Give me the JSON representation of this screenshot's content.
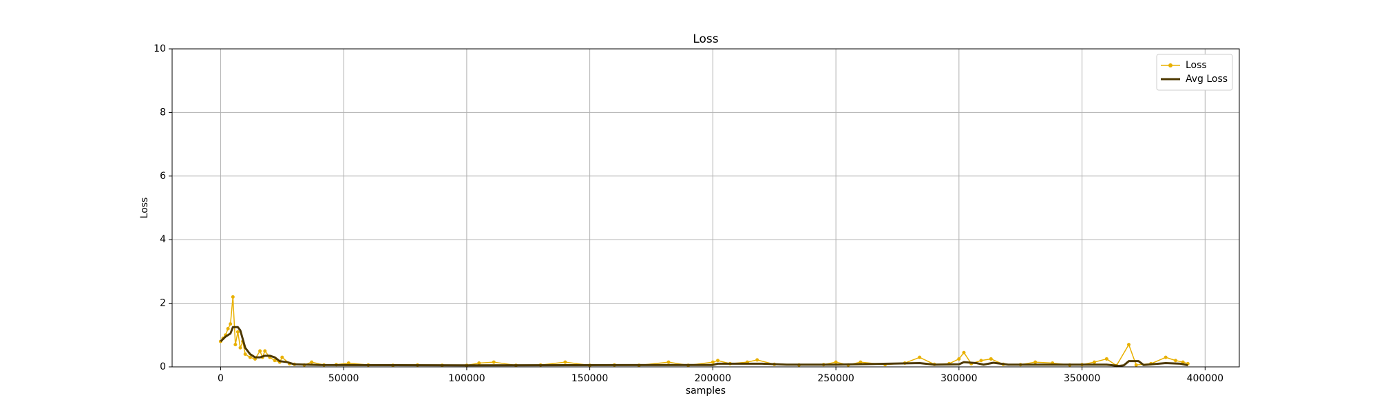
{
  "chart_data": {
    "type": "line",
    "title": "Loss",
    "xlabel": "samples",
    "ylabel": "Loss",
    "xlim": [
      -19700,
      413900
    ],
    "xticks": [
      0,
      50000,
      100000,
      150000,
      200000,
      250000,
      300000,
      350000,
      400000
    ],
    "ylim": [
      0,
      10
    ],
    "yticks": [
      0,
      2,
      4,
      6,
      8,
      10
    ],
    "grid": true,
    "legend": "upper right",
    "series": [
      {
        "name": "Loss",
        "color": "#e8b000",
        "marker": true,
        "x": [
          0,
          1000,
          2000,
          3000,
          4000,
          5000,
          6000,
          7000,
          8000,
          9000,
          10000,
          12000,
          14000,
          16000,
          17000,
          18000,
          20000,
          22000,
          24000,
          25000,
          28000,
          30000,
          34000,
          37000,
          42000,
          47000,
          52000,
          60000,
          70000,
          80000,
          90000,
          100000,
          105000,
          111000,
          120000,
          130000,
          140000,
          150000,
          160000,
          170000,
          182000,
          190000,
          200000,
          202000,
          207000,
          214000,
          218000,
          225000,
          235000,
          245000,
          250000,
          255000,
          260000,
          270000,
          278000,
          284000,
          290000,
          296000,
          300000,
          302000,
          305000,
          309000,
          313000,
          318000,
          325000,
          331000,
          338000,
          345000,
          350000,
          355000,
          360000,
          364000,
          369000,
          372000,
          378000,
          384000,
          388000,
          391000,
          393000
        ],
        "values": [
          0.8,
          0.9,
          1.0,
          1.2,
          1.35,
          2.2,
          0.7,
          1.1,
          0.6,
          0.8,
          0.4,
          0.3,
          0.25,
          0.5,
          0.3,
          0.5,
          0.3,
          0.2,
          0.15,
          0.3,
          0.1,
          0.08,
          0.06,
          0.15,
          0.06,
          0.07,
          0.12,
          0.06,
          0.05,
          0.06,
          0.05,
          0.05,
          0.12,
          0.15,
          0.05,
          0.06,
          0.15,
          0.05,
          0.06,
          0.05,
          0.15,
          0.05,
          0.15,
          0.2,
          0.1,
          0.15,
          0.22,
          0.08,
          0.06,
          0.07,
          0.15,
          0.06,
          0.15,
          0.07,
          0.12,
          0.3,
          0.08,
          0.1,
          0.25,
          0.45,
          0.1,
          0.2,
          0.25,
          0.08,
          0.07,
          0.15,
          0.12,
          0.06,
          0.07,
          0.15,
          0.25,
          0.04,
          0.7,
          0.06,
          0.1,
          0.3,
          0.2,
          0.15,
          0.1
        ]
      },
      {
        "name": "Avg Loss",
        "color": "#4d3800",
        "marker": false,
        "x": [
          0,
          2000,
          4000,
          5000,
          7000,
          8000,
          10000,
          12000,
          14000,
          16000,
          18000,
          20000,
          22000,
          24000,
          27000,
          30000,
          40000,
          100000,
          200000,
          202000,
          220000,
          230000,
          250000,
          284000,
          290000,
          300000,
          302000,
          307000,
          310000,
          314000,
          320000,
          360000,
          365000,
          367000,
          369000,
          373000,
          375000,
          384000,
          390000,
          393000
        ],
        "values": [
          0.8,
          0.95,
          1.05,
          1.25,
          1.25,
          1.15,
          0.6,
          0.4,
          0.3,
          0.3,
          0.35,
          0.35,
          0.3,
          0.18,
          0.15,
          0.08,
          0.06,
          0.05,
          0.06,
          0.1,
          0.1,
          0.07,
          0.07,
          0.12,
          0.07,
          0.08,
          0.15,
          0.12,
          0.07,
          0.13,
          0.07,
          0.07,
          0.03,
          0.05,
          0.18,
          0.18,
          0.06,
          0.12,
          0.1,
          0.05
        ]
      }
    ]
  }
}
